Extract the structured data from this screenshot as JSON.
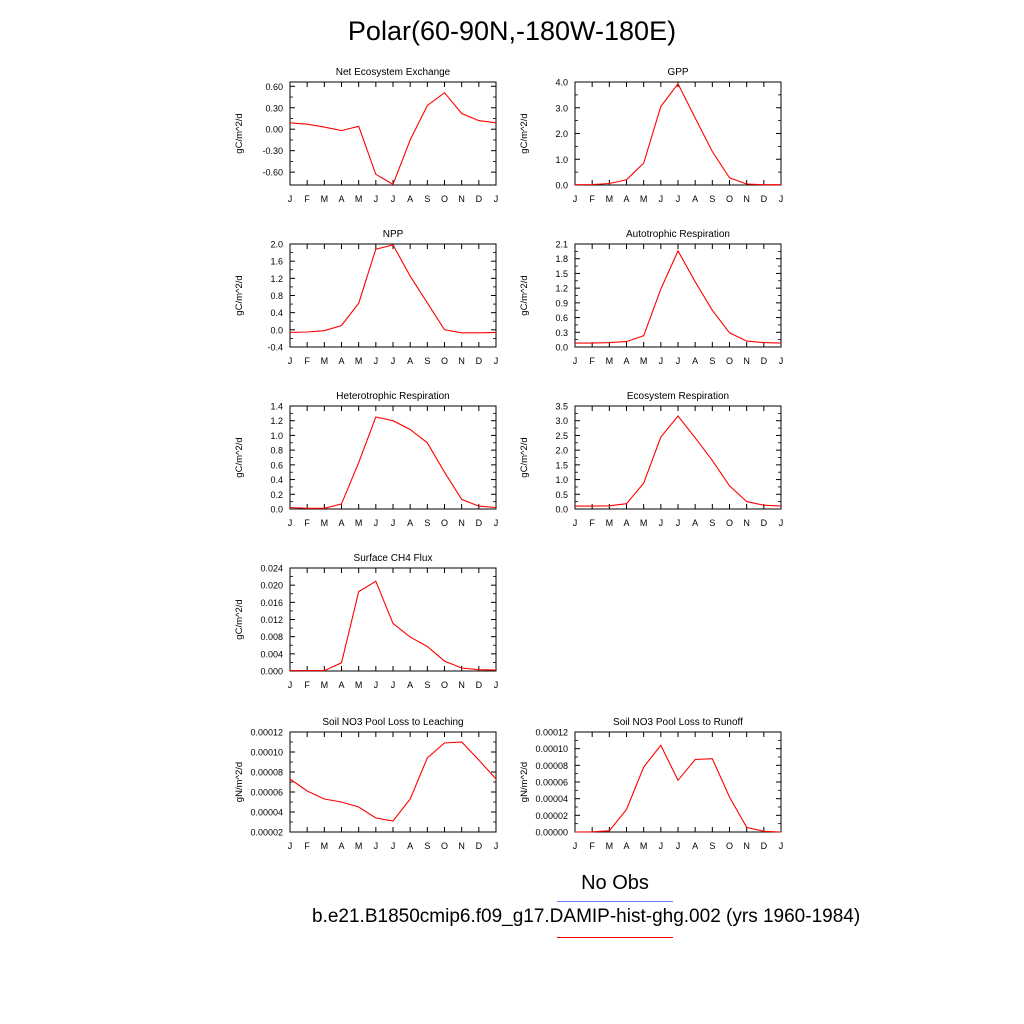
{
  "title": "Polar(60-90N,-180W-180E)",
  "months": [
    "J",
    "F",
    "M",
    "A",
    "M",
    "J",
    "J",
    "A",
    "S",
    "O",
    "N",
    "D",
    "J"
  ],
  "legend": {
    "obs_label": "No Obs",
    "obs_color": "#6b7bff",
    "case_label": "b.e21.B1850cmip6.f09_g17.DAMIP-hist-ghg.002 (yrs 1960-1984)",
    "case_color": "#ff0000"
  },
  "line_color": "#ff0000",
  "chart_data": [
    {
      "type": "line",
      "title": "Net Ecosystem Exchange",
      "ylabel": "gC/m^2/d",
      "ylim": [
        -0.78,
        0.66
      ],
      "yticks": [
        -0.6,
        -0.3,
        0.0,
        0.3,
        0.6
      ],
      "ytick_labels": [
        "-0.60",
        "-0.30",
        "0.00",
        "0.30",
        "0.60"
      ],
      "values": [
        0.09,
        0.07,
        0.03,
        -0.02,
        0.04,
        -0.63,
        -0.77,
        -0.15,
        0.33,
        0.51,
        0.22,
        0.12,
        0.09
      ]
    },
    {
      "type": "line",
      "title": "GPP",
      "ylabel": "gC/m^2/d",
      "ylim": [
        0.0,
        4.0
      ],
      "yticks": [
        0.0,
        1.0,
        2.0,
        3.0,
        4.0
      ],
      "ytick_labels": [
        "0.0",
        "1.0",
        "2.0",
        "3.0",
        "4.0"
      ],
      "values": [
        0.01,
        0.02,
        0.06,
        0.2,
        0.85,
        3.05,
        3.93,
        2.6,
        1.3,
        0.28,
        0.04,
        0.01,
        0.01
      ]
    },
    {
      "type": "line",
      "title": "NPP",
      "ylabel": "gC/m^2/d",
      "ylim": [
        -0.4,
        2.0
      ],
      "yticks": [
        -0.4,
        0.0,
        0.4,
        0.8,
        1.2,
        1.6,
        2.0
      ],
      "ytick_labels": [
        "-0.4",
        "0.0",
        "0.4",
        "0.8",
        "1.2",
        "1.6",
        "2.0"
      ],
      "values": [
        -0.06,
        -0.05,
        -0.02,
        0.1,
        0.62,
        1.88,
        1.98,
        1.25,
        0.63,
        0.0,
        -0.07,
        -0.07,
        -0.06
      ]
    },
    {
      "type": "line",
      "title": "Autotrophic Respiration",
      "ylabel": "gC/m^2/d",
      "ylim": [
        0.0,
        2.1
      ],
      "yticks": [
        0.0,
        0.3,
        0.6,
        0.9,
        1.2,
        1.5,
        1.8,
        2.1
      ],
      "ytick_labels": [
        "0.0",
        "0.3",
        "0.6",
        "0.9",
        "1.2",
        "1.5",
        "1.8",
        "2.1"
      ],
      "values": [
        0.08,
        0.08,
        0.09,
        0.11,
        0.23,
        1.18,
        1.96,
        1.33,
        0.75,
        0.29,
        0.12,
        0.09,
        0.08
      ]
    },
    {
      "type": "line",
      "title": "Heterotrophic Respiration",
      "ylabel": "gC/m^2/d",
      "ylim": [
        0.0,
        1.4
      ],
      "yticks": [
        0.0,
        0.2,
        0.4,
        0.6,
        0.8,
        1.0,
        1.2,
        1.4
      ],
      "ytick_labels": [
        "0.0",
        "0.2",
        "0.4",
        "0.6",
        "0.8",
        "1.0",
        "1.2",
        "1.4"
      ],
      "values": [
        0.02,
        0.01,
        0.01,
        0.07,
        0.63,
        1.25,
        1.2,
        1.08,
        0.9,
        0.5,
        0.13,
        0.04,
        0.02
      ]
    },
    {
      "type": "line",
      "title": "Ecosystem Respiration",
      "ylabel": "gC/m^2/d",
      "ylim": [
        0.0,
        3.5
      ],
      "yticks": [
        0.0,
        0.5,
        1.0,
        1.5,
        2.0,
        2.5,
        3.0,
        3.5
      ],
      "ytick_labels": [
        "0.0",
        "0.5",
        "1.0",
        "1.5",
        "2.0",
        "2.5",
        "3.0",
        "3.5"
      ],
      "values": [
        0.1,
        0.1,
        0.11,
        0.18,
        0.88,
        2.44,
        3.16,
        2.42,
        1.65,
        0.79,
        0.25,
        0.13,
        0.1
      ]
    },
    {
      "type": "line",
      "title": "Surface CH4 Flux",
      "ylabel": "gC/m^2/d",
      "ylim": [
        0.0,
        0.024
      ],
      "yticks": [
        0.0,
        0.004,
        0.008,
        0.012,
        0.016,
        0.02,
        0.024
      ],
      "ytick_labels": [
        "0.000",
        "0.004",
        "0.008",
        "0.012",
        "0.016",
        "0.020",
        "0.024"
      ],
      "values": [
        0.0001,
        0.0001,
        0.0001,
        0.0019,
        0.0185,
        0.0209,
        0.0111,
        0.0079,
        0.0057,
        0.0023,
        0.0007,
        0.0003,
        0.0002
      ]
    },
    {
      "type": "line",
      "title": "Soil NO3 Pool Loss to Leaching",
      "ylabel": "gN/m^2/d",
      "ylim": [
        2e-05,
        0.00012
      ],
      "yticks": [
        2e-05,
        4e-05,
        6e-05,
        8e-05,
        0.0001,
        0.00012
      ],
      "ytick_labels": [
        "0.00002",
        "0.00004",
        "0.00006",
        "0.00008",
        "0.00010",
        "0.00012"
      ],
      "values": [
        7.3e-05,
        6.1e-05,
        5.3e-05,
        5e-05,
        4.5e-05,
        3.4e-05,
        3.1e-05,
        5.3e-05,
        9.4e-05,
        0.000109,
        0.00011,
        9.2e-05,
        7.3e-05
      ]
    },
    {
      "type": "line",
      "title": "Soil NO3 Pool Loss to Runoff",
      "ylabel": "gN/m^2/d",
      "ylim": [
        0.0,
        0.00012
      ],
      "yticks": [
        0.0,
        2e-05,
        4e-05,
        6e-05,
        8e-05,
        0.0001,
        0.00012
      ],
      "ytick_labels": [
        "0.00000",
        "0.00002",
        "0.00004",
        "0.00006",
        "0.00008",
        "0.00010",
        "0.00012"
      ],
      "values": [
        0.0,
        3e-07,
        1.5e-06,
        2.7e-05,
        7.8e-05,
        0.000104,
        6.2e-05,
        8.7e-05,
        8.8e-05,
        4.2e-05,
        5.5e-06,
        8e-07,
        0.0
      ]
    }
  ]
}
